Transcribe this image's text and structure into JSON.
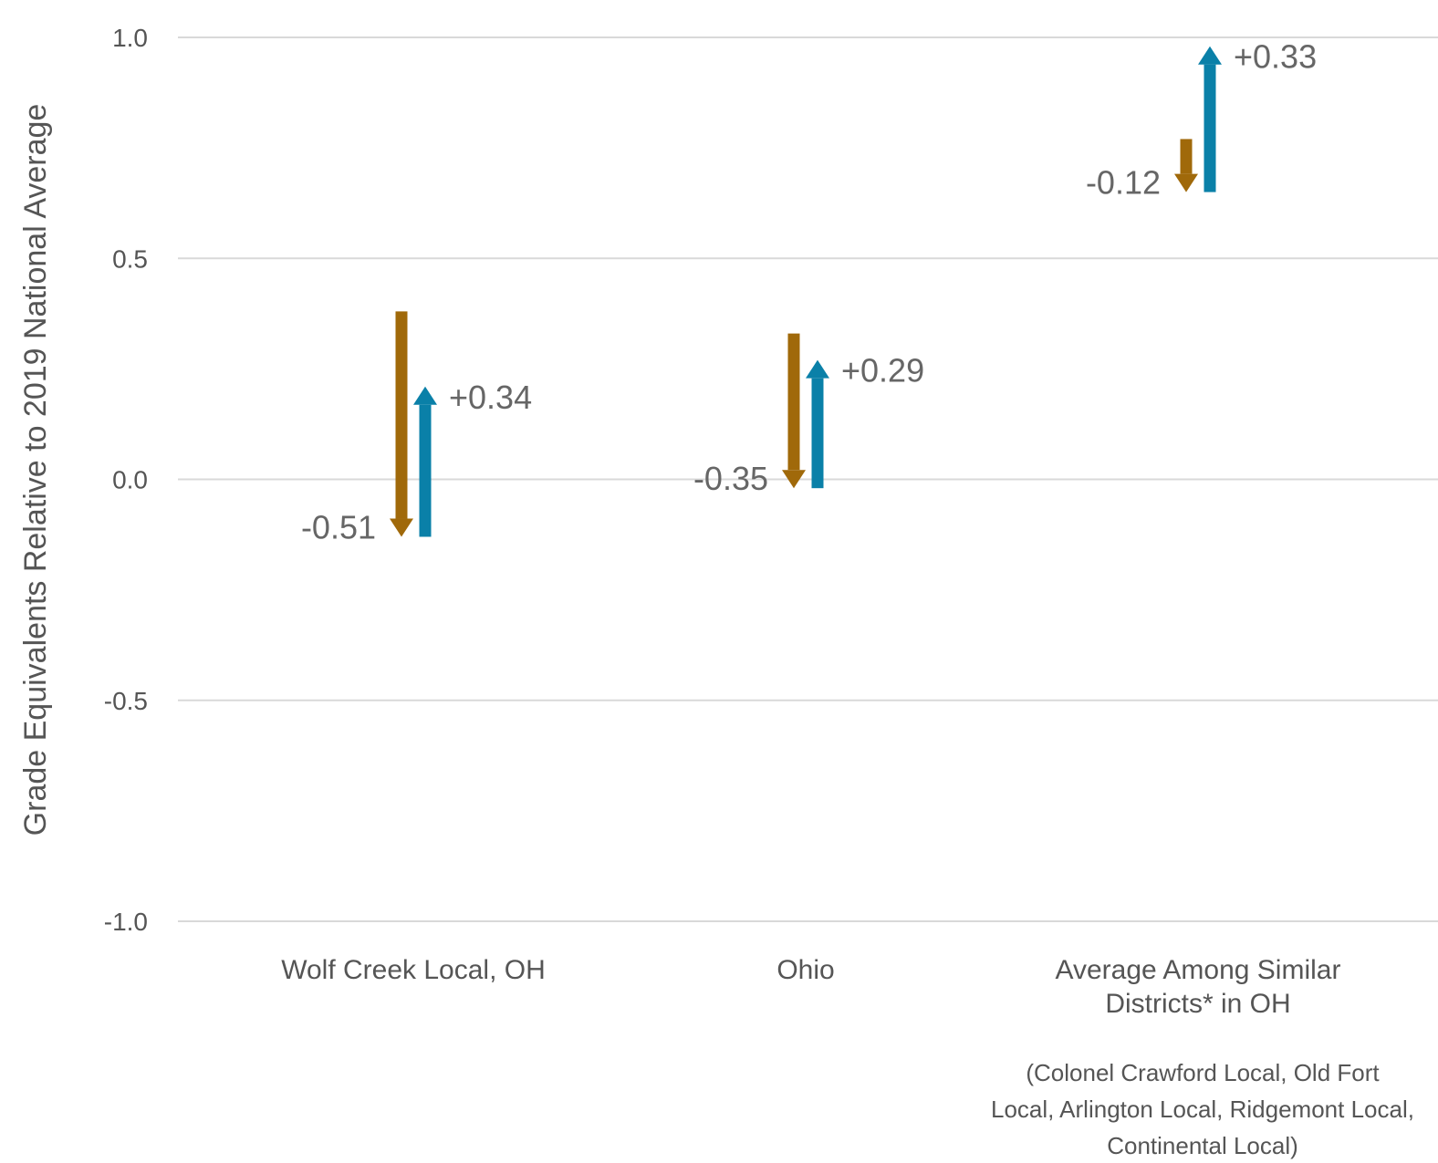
{
  "chart_data": {
    "type": "arrow",
    "title": "",
    "xlabel": "",
    "ylabel": "Grade Equivalents Relative to 2019 National Average",
    "ylim": [
      -1.0,
      1.0
    ],
    "yticks": [
      1.0,
      0.5,
      0.0,
      -0.5,
      -1.0
    ],
    "ytick_labels": [
      "1.0",
      "0.5",
      "0.0",
      "-0.5",
      "-1.0"
    ],
    "grid": true,
    "categories": [
      {
        "label_lines": [
          "Wolf Creek Local, OH"
        ],
        "note_lines": []
      },
      {
        "label_lines": [
          "Ohio"
        ],
        "note_lines": []
      },
      {
        "label_lines": [
          "Average Among Similar",
          "Districts* in OH"
        ],
        "note_lines": [
          "(Colonel Crawford Local, Old Fort",
          "Local, Arlington Local, Ridgemont Local,",
          "Continental Local)"
        ]
      }
    ],
    "series": [
      {
        "direction": "down",
        "color": "#a0690a",
        "start": [
          0.38,
          0.33,
          0.77
        ],
        "end": [
          -0.13,
          -0.02,
          0.65
        ],
        "labels": [
          "-0.51",
          "-0.35",
          "-0.12"
        ]
      },
      {
        "direction": "up",
        "color": "#0a80a8",
        "start": [
          -0.13,
          -0.02,
          0.65
        ],
        "end": [
          0.21,
          0.27,
          0.98
        ],
        "labels": [
          "+0.34",
          "+0.29",
          "+0.33"
        ]
      }
    ]
  }
}
